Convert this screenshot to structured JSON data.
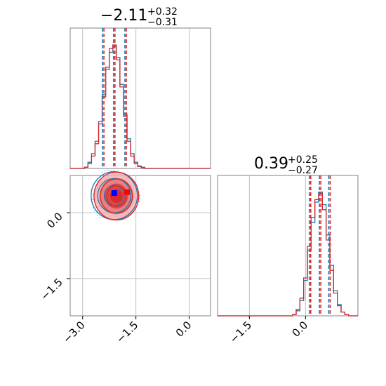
{
  "chart_data": [
    {
      "type": "histogram",
      "panel": "top-left",
      "title": {
        "main": "−2.11",
        "upper": "+0.32",
        "lower": "−0.31"
      },
      "median": -2.11,
      "quantiles": [
        -2.42,
        -2.11,
        -1.79
      ],
      "xlim": [
        -3.35,
        0.6
      ],
      "grid": true,
      "series": [
        {
          "color": "#1f77b4",
          "x": [
            -2.9,
            -2.8,
            -2.7,
            -2.6,
            -2.5,
            -2.4,
            -2.3,
            -2.2,
            -2.1,
            -2.0,
            -1.9,
            -1.8,
            -1.7,
            -1.6,
            -1.5,
            -1.4,
            -1.3,
            -1.2
          ],
          "y": [
            0.01,
            0.05,
            0.12,
            0.22,
            0.38,
            0.6,
            0.8,
            0.94,
            0.99,
            0.9,
            0.68,
            0.44,
            0.24,
            0.12,
            0.05,
            0.02,
            0.01,
            0.0
          ]
        },
        {
          "color": "#d62728",
          "x": [
            -2.9,
            -2.8,
            -2.7,
            -2.6,
            -2.5,
            -2.4,
            -2.3,
            -2.2,
            -2.1,
            -2.0,
            -1.9,
            -1.8,
            -1.7,
            -1.6,
            -1.5,
            -1.4,
            -1.3,
            -1.2
          ],
          "y": [
            0.01,
            0.04,
            0.1,
            0.2,
            0.36,
            0.58,
            0.82,
            0.97,
            1.0,
            0.88,
            0.66,
            0.42,
            0.22,
            0.1,
            0.04,
            0.015,
            0.005,
            0.0
          ]
        }
      ]
    },
    {
      "type": "contour",
      "panel": "bottom-left",
      "xlim": [
        -3.35,
        0.6
      ],
      "ylim": [
        -2.35,
        0.85
      ],
      "xticks": [
        -3.0,
        -1.5,
        0.0
      ],
      "xtick_labels": [
        "−3.0",
        "−1.5",
        "0.0"
      ],
      "yticks": [
        0.0,
        -1.5
      ],
      "ytick_labels": [
        "0.0",
        "−1.5"
      ],
      "grid": true,
      "series": [
        {
          "color": "#1f77b4",
          "center": [
            -2.11,
            0.39
          ],
          "sd": [
            0.31,
            0.26
          ],
          "marker": [
            -2.11,
            0.45
          ]
        },
        {
          "color": "#d62728",
          "center": [
            -2.05,
            0.38
          ],
          "sd": [
            0.3,
            0.26
          ],
          "marker": [
            -1.75,
            0.47
          ]
        }
      ]
    },
    {
      "type": "histogram",
      "panel": "bottom-right",
      "title": {
        "main": "0.39",
        "upper": "+0.25",
        "lower": "−0.27"
      },
      "median": 0.39,
      "quantiles": [
        0.12,
        0.39,
        0.64
      ],
      "xlim": [
        -2.35,
        1.4
      ],
      "xticks": [
        -1.5,
        0.0
      ],
      "xtick_labels": [
        "−1.5",
        "0.0"
      ],
      "grid": true,
      "series": [
        {
          "color": "#1f77b4",
          "x": [
            -0.3,
            -0.2,
            -0.1,
            0.0,
            0.1,
            0.2,
            0.3,
            0.4,
            0.5,
            0.6,
            0.7,
            0.8,
            0.9,
            1.0,
            1.1,
            1.2
          ],
          "y": [
            0.01,
            0.04,
            0.12,
            0.28,
            0.52,
            0.74,
            0.9,
            0.98,
            0.88,
            0.64,
            0.4,
            0.2,
            0.09,
            0.03,
            0.01,
            0.0
          ]
        },
        {
          "color": "#d62728",
          "x": [
            -0.3,
            -0.2,
            -0.1,
            0.0,
            0.1,
            0.2,
            0.3,
            0.4,
            0.5,
            0.6,
            0.7,
            0.8,
            0.9,
            1.0,
            1.1,
            1.2
          ],
          "y": [
            0.01,
            0.05,
            0.14,
            0.3,
            0.55,
            0.78,
            0.92,
            0.97,
            0.84,
            0.6,
            0.36,
            0.18,
            0.08,
            0.03,
            0.01,
            0.0
          ]
        }
      ]
    }
  ]
}
